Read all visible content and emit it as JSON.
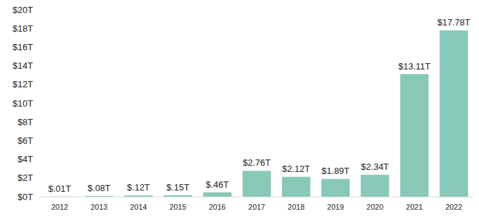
{
  "chart_data": {
    "type": "bar",
    "categories": [
      "2012",
      "2013",
      "2014",
      "2015",
      "2016",
      "2017",
      "2018",
      "2019",
      "2020",
      "2021",
      "2022"
    ],
    "values": [
      0.01,
      0.08,
      0.12,
      0.15,
      0.46,
      2.76,
      2.12,
      1.89,
      2.34,
      13.11,
      17.78
    ],
    "value_labels": [
      "$.01T",
      "$.08T",
      "$.12T",
      "$.15T",
      "$.46T",
      "$2.76T",
      "$2.12T",
      "$1.89T",
      "$2.34T",
      "$13.11T",
      "$17.78T"
    ],
    "color": "#88c8b8",
    "ylim": [
      0,
      20
    ],
    "yticks": [
      {
        "value": 0,
        "label": "$0T"
      },
      {
        "value": 2,
        "label": "$2T"
      },
      {
        "value": 4,
        "label": "$4T"
      },
      {
        "value": 6,
        "label": "$6T"
      },
      {
        "value": 8,
        "label": "$8T"
      },
      {
        "value": 10,
        "label": "$10T"
      },
      {
        "value": 12,
        "label": "$12T"
      },
      {
        "value": 14,
        "label": "$14T"
      },
      {
        "value": 16,
        "label": "$16T"
      },
      {
        "value": 18,
        "label": "$18T"
      },
      {
        "value": 20,
        "label": "$20T"
      }
    ],
    "grid": false,
    "data_labels": true
  }
}
